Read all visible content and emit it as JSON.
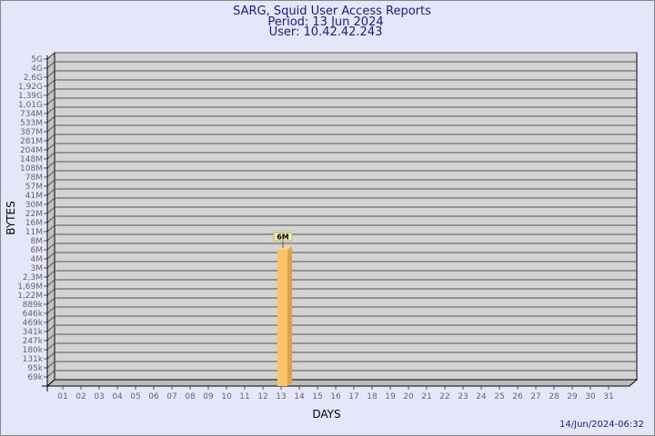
{
  "chart_data": {
    "type": "bar",
    "title": "SARG, Squid User Access Reports",
    "subtitle_period": "Period: 13 Jun 2024",
    "subtitle_user": "User: 10.42.42.243",
    "xlabel": "DAYS",
    "ylabel": "BYTES",
    "timestamp": "14/Jun/2024-06:32",
    "x_tick_labels": [
      "01",
      "02",
      "03",
      "04",
      "05",
      "06",
      "07",
      "08",
      "09",
      "10",
      "11",
      "12",
      "13",
      "14",
      "15",
      "16",
      "17",
      "18",
      "19",
      "20",
      "21",
      "22",
      "23",
      "24",
      "25",
      "26",
      "27",
      "28",
      "29",
      "30",
      "31"
    ],
    "y_tick_labels": [
      "5G",
      "4G",
      "2,6G",
      "1,92G",
      "1,39G",
      "1,01G",
      "734M",
      "533M",
      "387M",
      "281M",
      "204M",
      "148M",
      "108M",
      "78M",
      "57M",
      "41M",
      "30M",
      "22M",
      "16M",
      "11M",
      "8M",
      "6M",
      "4M",
      "3M",
      "2,3M",
      "1,69M",
      "1,22M",
      "889k",
      "646k",
      "469k",
      "341k",
      "247k",
      "180k",
      "131k",
      "95k",
      "69k"
    ],
    "y_scale": "log",
    "grid": true,
    "bars": [
      {
        "day": "13",
        "value_label": "6M",
        "value_tick": "6M"
      }
    ],
    "colors": {
      "background": "#e6e6fa",
      "plot": "#d3d3d3",
      "bar": "#fbc46a",
      "bar_side": "#e0a04c",
      "title": "#1a1a8c",
      "label_box": "#eeeebb"
    }
  }
}
